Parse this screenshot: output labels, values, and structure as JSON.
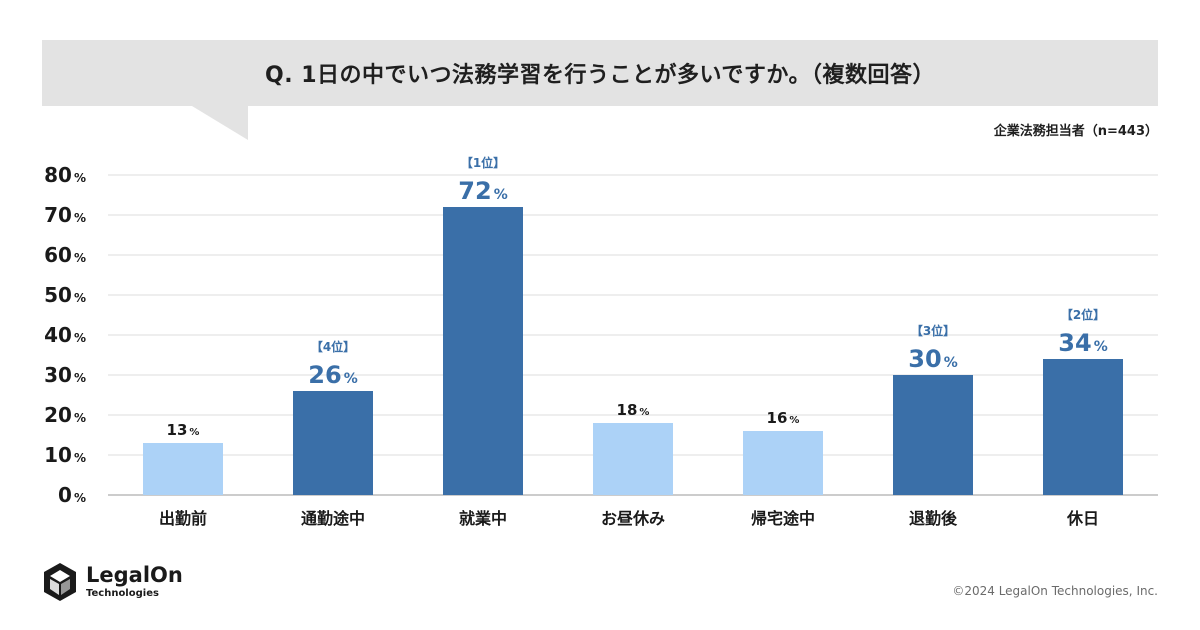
{
  "header": {
    "title": "Q. 1日の中でいつ法務学習を行うことが多いですか。（複数回答）",
    "sample": "企業法務担当者（n=443）"
  },
  "colors": {
    "highlight": "#3a6fa8",
    "normal": "#acd2f7",
    "label_highlight": "#3a6fa8",
    "grid": "#dcdcdc",
    "title_bg": "#e3e3e3"
  },
  "chart_data": {
    "type": "bar",
    "title": "Q. 1日の中でいつ法務学習を行うことが多いですか。（複数回答）",
    "xlabel": "",
    "ylabel": "",
    "ylim": [
      0,
      80
    ],
    "yticks": [
      0,
      10,
      20,
      30,
      40,
      50,
      60,
      70,
      80
    ],
    "tick_suffix": "%",
    "grid": true,
    "categories": [
      "出勤前",
      "通勤途中",
      "就業中",
      "お昼休み",
      "帰宅途中",
      "退勤後",
      "休日"
    ],
    "values": [
      13,
      26,
      72,
      18,
      16,
      30,
      34
    ],
    "highlighted": [
      false,
      true,
      true,
      false,
      false,
      true,
      true
    ],
    "rank_labels": [
      "",
      "【4位】",
      "【1位】",
      "",
      "",
      "【3位】",
      "【2位】"
    ],
    "value_suffix": "%"
  },
  "footer": {
    "logo_name": "LegalOn",
    "logo_sub": "Technologies",
    "copyright": "©2024 LegalOn Technologies, Inc."
  }
}
